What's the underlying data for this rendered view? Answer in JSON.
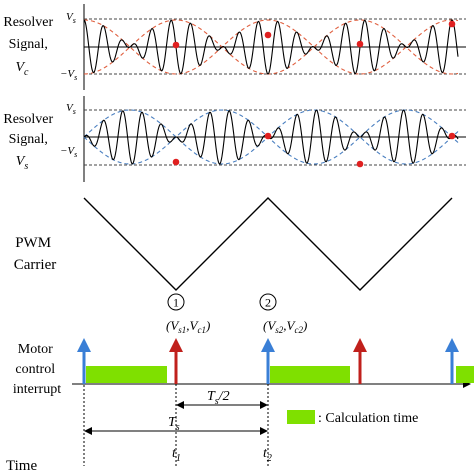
{
  "labels": {
    "resolver_vc": [
      "Resolver",
      "Signal,",
      "V",
      "c"
    ],
    "resolver_vs": [
      "Resolver",
      "Signal,",
      "V",
      "s"
    ],
    "pwm": [
      "PWM",
      "Carrier"
    ],
    "motor": [
      "Motor",
      "control",
      "interrupt"
    ],
    "time": "Time"
  },
  "axis_ticks": {
    "pos_main": "V",
    "pos_sub": "s",
    "neg_main": "−V",
    "neg_sub": "s"
  },
  "markers": {
    "m1": {
      "circle": "1",
      "text_main": "(V",
      "s_sub": "s1",
      "sep": ",V",
      "c_sub": "c1",
      "close": ")"
    },
    "m2": {
      "circle": "2",
      "text_main": "(V",
      "s_sub": "s2",
      "sep": ",V",
      "c_sub": "c2",
      "close": ")"
    }
  },
  "time_labels": {
    "t1_main": "t",
    "t1_sub": "1",
    "t2_main": "t",
    "t2_sub": "2"
  },
  "spans": {
    "half": {
      "main": "T",
      "sub": "s",
      "suffix": "/2"
    },
    "full": {
      "main": "T",
      "sub": "s"
    }
  },
  "legend": {
    "text": ": Calculation time"
  },
  "colors": {
    "cos_envelope": "#e06040",
    "sin_envelope": "#4a7fc0",
    "sample_point": "#e02020",
    "interrupt_arrow_blue": "#3a7fd6",
    "interrupt_arrow_red": "#c0201c",
    "calc_bar": "#7fe000"
  }
}
